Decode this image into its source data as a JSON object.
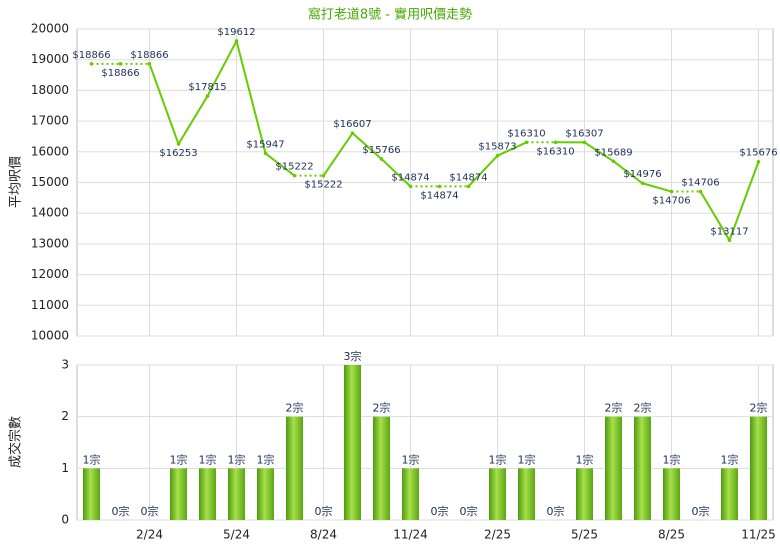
{
  "chart_data": [
    {
      "type": "line",
      "title": "窩打老道8號 - 實用呎價走勢",
      "ylabel": "平均呎價",
      "color": "#66cc00",
      "categories": [
        null,
        null,
        "2/24",
        null,
        null,
        "5/24",
        null,
        null,
        "8/24",
        null,
        null,
        "11/24",
        null,
        null,
        "2/25",
        null,
        null,
        "5/25",
        null,
        null,
        "8/25",
        null,
        null,
        "11/25"
      ],
      "values": [
        18866,
        18866,
        18866,
        16253,
        17815,
        19612,
        15947,
        15222,
        15222,
        16607,
        15766,
        14874,
        14874,
        14874,
        15873,
        16310,
        16310,
        16307,
        15689,
        14976,
        14706,
        14706,
        13117,
        15676
      ],
      "value_labels": [
        "$18866",
        "$18866",
        "$18866",
        "$16253",
        "$17815",
        "$19612",
        "$15947",
        "$15222",
        "$15222",
        "$16607",
        "$15766",
        "$14874",
        "$14874",
        "$14874",
        "$15873",
        "$16310",
        "$16310",
        "$16307",
        "$15689",
        "$14976",
        "$14706",
        "$14706",
        "$13117",
        "$15676"
      ],
      "ylim": [
        10000,
        20000
      ],
      "yticks": [
        10000,
        11000,
        12000,
        13000,
        14000,
        15000,
        16000,
        17000,
        18000,
        19000,
        20000
      ],
      "grid": true
    },
    {
      "type": "bar",
      "ylabel": "成交宗數",
      "color": "#7cc520",
      "categories": [
        null,
        null,
        "2/24",
        null,
        null,
        "5/24",
        null,
        null,
        "8/24",
        null,
        null,
        "11/24",
        null,
        null,
        "2/25",
        null,
        null,
        "5/25",
        null,
        null,
        "8/25",
        null,
        null,
        "11/25"
      ],
      "values": [
        1,
        0,
        0,
        1,
        1,
        1,
        1,
        2,
        0,
        3,
        2,
        1,
        0,
        0,
        1,
        1,
        0,
        1,
        2,
        2,
        1,
        0,
        1,
        2
      ],
      "value_labels": [
        "1宗",
        "0宗",
        "0宗",
        "1宗",
        "1宗",
        "1宗",
        "1宗",
        "2宗",
        "0宗",
        "3宗",
        "2宗",
        "1宗",
        "0宗",
        "0宗",
        "1宗",
        "1宗",
        "0宗",
        "1宗",
        "2宗",
        "2宗",
        "1宗",
        "0宗",
        "1宗",
        "2宗"
      ],
      "ylim": [
        0,
        3
      ],
      "yticks": [
        0,
        1,
        2,
        3
      ],
      "grid": true
    }
  ]
}
